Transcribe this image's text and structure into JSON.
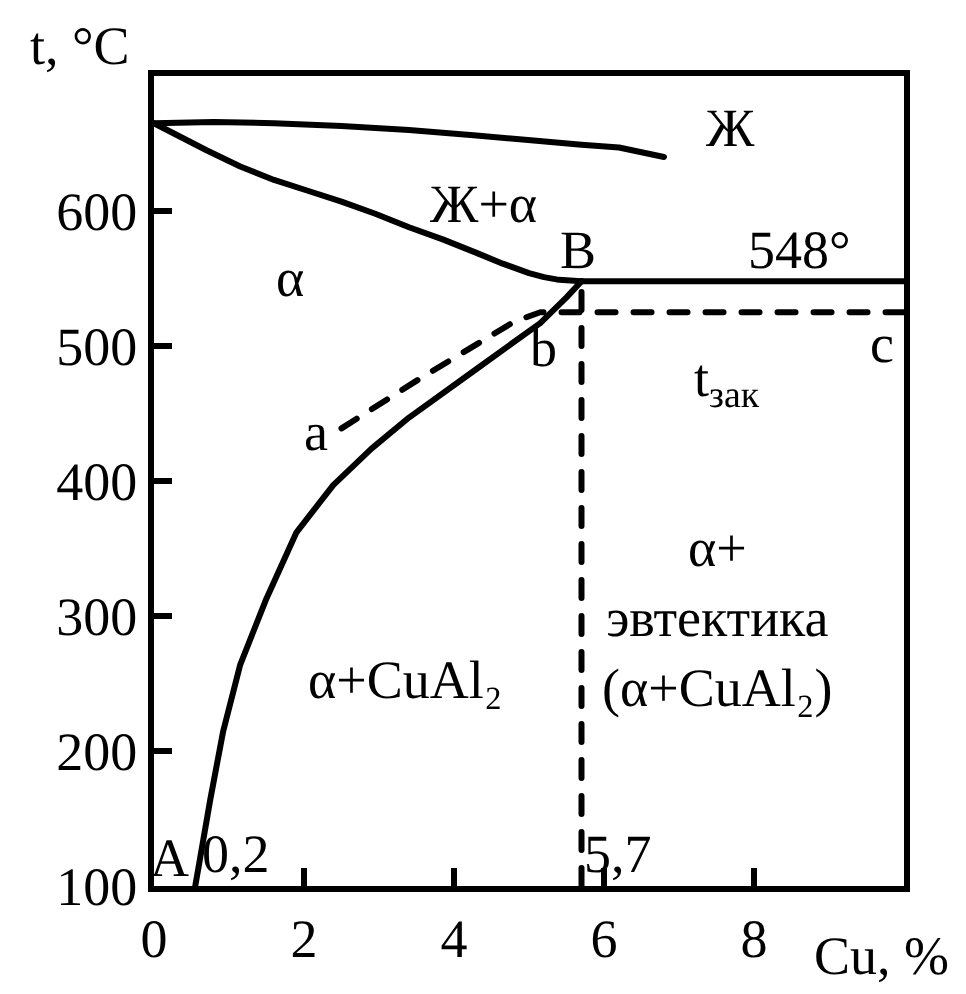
{
  "chart_data": {
    "type": "line",
    "xlabel": "Cu, %",
    "ylabel": "t, °C",
    "xlim": [
      0,
      10
    ],
    "ylim": [
      100,
      700
    ],
    "xticks": [
      0,
      2,
      4,
      6,
      8
    ],
    "yticks": [
      100,
      200,
      300,
      400,
      500,
      600
    ],
    "line_style": "solid",
    "series": [
      {
        "color": "#000000",
        "x": [
          0,
          0.8,
          1.6,
          2.5,
          3.4,
          4.3,
          5.1,
          5.7,
          6.2,
          6.8
        ],
        "values": [
          665,
          666,
          665,
          663,
          660,
          656,
          652,
          649,
          647,
          640
        ]
      },
      {
        "color": "#000000",
        "x": [
          0,
          0.35,
          0.7,
          1.15,
          1.6,
          2.05,
          2.5,
          2.95,
          3.4,
          3.85,
          4.3,
          4.65,
          5.0,
          5.2,
          5.4,
          5.7,
          10
        ],
        "values": [
          665,
          655,
          645,
          633,
          623,
          615,
          607,
          598,
          588,
          579,
          569,
          561,
          554,
          551,
          549,
          548,
          548
        ]
      },
      {
        "color": "#000000",
        "x": [
          5.7,
          5.5,
          5.15,
          4.3,
          3.4,
          2.9,
          2.39,
          1.9,
          1.5,
          1.15,
          0.92,
          0.75,
          0.61,
          0.55
        ],
        "values": [
          548,
          536,
          517,
          483,
          447,
          424,
          397,
          362,
          313,
          264,
          214,
          164,
          119,
          100
        ]
      },
      {
        "color": "#000000",
        "line_style": "dashed",
        "x": [
          2.5,
          3.55,
          4.8,
          5.15,
          10
        ],
        "values": [
          439,
          476,
          518,
          525,
          525
        ]
      },
      {
        "color": "#000000",
        "line_style": "dashed",
        "x": [
          5.7,
          5.7
        ],
        "values": [
          100,
          548
        ]
      }
    ],
    "annotations": [
      "Ж",
      "Ж+α",
      "α",
      "B",
      "548°",
      "b",
      "c",
      "t$_{зак}$",
      "a",
      "α+CuAl₂",
      "α+\nэвтектика\n(α+CuAl₂)",
      "A",
      "0,2",
      "5,7"
    ]
  }
}
